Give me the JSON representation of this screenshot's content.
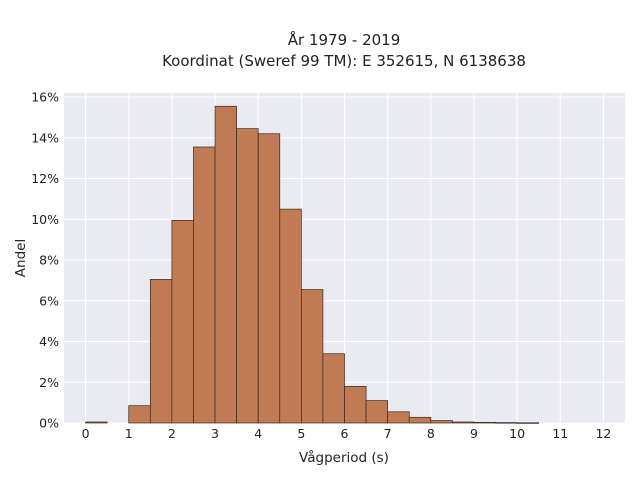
{
  "chart_data": {
    "type": "bar",
    "title": "År 1979 - 2019",
    "subtitle": "Koordinat (Sweref 99 TM): E 352615, N 6138638",
    "xlabel": "Vågperiod (s)",
    "ylabel": "Andel",
    "xlim": [
      -0.5,
      12.5
    ],
    "ylim": [
      0,
      16.2
    ],
    "x_ticks": [
      0,
      1,
      2,
      3,
      4,
      5,
      6,
      7,
      8,
      9,
      10,
      11,
      12
    ],
    "y_ticks": [
      0,
      2,
      4,
      6,
      8,
      10,
      12,
      14,
      16
    ],
    "y_tick_format": "percent",
    "grid": true,
    "bar_color": "#c07b55",
    "bar_edge_color": "#3a2a20",
    "plot_background": "#eaeaf2",
    "bins": [
      {
        "start": 0.0,
        "end": 0.5,
        "value": 0.05
      },
      {
        "start": 0.5,
        "end": 1.0,
        "value": 0.0
      },
      {
        "start": 1.0,
        "end": 1.5,
        "value": 0.85
      },
      {
        "start": 1.5,
        "end": 2.0,
        "value": 7.05
      },
      {
        "start": 2.0,
        "end": 2.5,
        "value": 9.95
      },
      {
        "start": 2.5,
        "end": 3.0,
        "value": 13.55
      },
      {
        "start": 3.0,
        "end": 3.5,
        "value": 15.55
      },
      {
        "start": 3.5,
        "end": 4.0,
        "value": 14.45
      },
      {
        "start": 4.0,
        "end": 4.5,
        "value": 14.2
      },
      {
        "start": 4.5,
        "end": 5.0,
        "value": 10.5
      },
      {
        "start": 5.0,
        "end": 5.5,
        "value": 6.55
      },
      {
        "start": 5.5,
        "end": 6.0,
        "value": 3.4
      },
      {
        "start": 6.0,
        "end": 6.5,
        "value": 1.8
      },
      {
        "start": 6.5,
        "end": 7.0,
        "value": 1.1
      },
      {
        "start": 7.0,
        "end": 7.5,
        "value": 0.55
      },
      {
        "start": 7.5,
        "end": 8.0,
        "value": 0.28
      },
      {
        "start": 8.0,
        "end": 8.5,
        "value": 0.12
      },
      {
        "start": 8.5,
        "end": 9.0,
        "value": 0.05
      },
      {
        "start": 9.0,
        "end": 9.5,
        "value": 0.03
      },
      {
        "start": 9.5,
        "end": 10.0,
        "value": 0.02
      },
      {
        "start": 10.0,
        "end": 10.5,
        "value": 0.01
      }
    ]
  }
}
